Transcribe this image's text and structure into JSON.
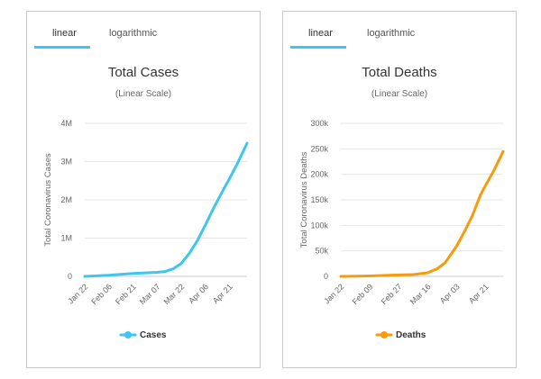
{
  "charts": [
    {
      "id": "cases",
      "tabs": [
        {
          "label": "linear",
          "active": true
        },
        {
          "label": "logarithmic",
          "active": false
        }
      ],
      "color": "#3ec5f0",
      "title": "Total Cases",
      "subtitle": "(Linear Scale)",
      "ylabel": "Total Coronavirus Cases",
      "legend": "Cases",
      "yticks": [
        "0",
        "1M",
        "2M",
        "3M",
        "4M"
      ],
      "ytick_values": [
        0,
        1000000,
        2000000,
        3000000,
        4000000
      ],
      "xticks": [
        "Jan 22",
        "Feb 06",
        "Feb 21",
        "Mar 07",
        "Mar 22",
        "Apr 06",
        "Apr 21"
      ],
      "xtick_days": [
        0,
        15,
        30,
        45,
        60,
        75,
        90
      ]
    },
    {
      "id": "deaths",
      "tabs": [
        {
          "label": "linear",
          "active": true
        },
        {
          "label": "logarithmic",
          "active": false
        }
      ],
      "color": "#f79b0c",
      "title": "Total Deaths",
      "subtitle": "(Linear Scale)",
      "ylabel": "Total Coronavirus Deaths",
      "legend": "Deaths",
      "yticks": [
        "0",
        "50k",
        "100k",
        "150k",
        "200k",
        "250k",
        "300k"
      ],
      "ytick_values": [
        0,
        50000,
        100000,
        150000,
        200000,
        250000,
        300000
      ],
      "xticks": [
        "Jan 22",
        "Feb 09",
        "Feb 27",
        "Mar 16",
        "Apr 03",
        "Apr 21"
      ],
      "xtick_days": [
        0,
        18,
        36,
        54,
        72,
        90
      ]
    }
  ],
  "chart_data": [
    {
      "type": "line",
      "title": "Total Cases",
      "subtitle": "(Linear Scale)",
      "ylabel": "Total Coronavirus Cases",
      "xlabel": "",
      "ylim": [
        0,
        4000000
      ],
      "xlim": [
        "Jan 22",
        "May 02"
      ],
      "legend": "bottom",
      "grid": true,
      "series": [
        {
          "name": "Cases",
          "color": "#3ec5f0",
          "x": [
            "Jan 22",
            "Feb 06",
            "Feb 21",
            "Mar 07",
            "Mar 12",
            "Mar 17",
            "Mar 22",
            "Mar 27",
            "Apr 01",
            "Apr 06",
            "Apr 11",
            "Apr 16",
            "Apr 21",
            "Apr 26",
            "May 02"
          ],
          "y": [
            555,
            30000,
            77000,
            105000,
            128000,
            198000,
            337000,
            593000,
            932000,
            1340000,
            1770000,
            2170000,
            2550000,
            2950000,
            3480000
          ]
        }
      ]
    },
    {
      "type": "line",
      "title": "Total Deaths",
      "subtitle": "(Linear Scale)",
      "ylabel": "Total Coronavirus Deaths",
      "xlabel": "",
      "ylim": [
        0,
        300000
      ],
      "xlim": [
        "Jan 22",
        "May 02"
      ],
      "legend": "bottom",
      "grid": true,
      "series": [
        {
          "name": "Deaths",
          "color": "#f79b0c",
          "x": [
            "Jan 22",
            "Feb 09",
            "Feb 27",
            "Mar 07",
            "Mar 16",
            "Mar 22",
            "Mar 27",
            "Apr 03",
            "Apr 08",
            "Apr 13",
            "Apr 18",
            "Apr 21",
            "Apr 26",
            "May 02"
          ],
          "y": [
            17,
            900,
            2800,
            3500,
            7100,
            15000,
            27000,
            59000,
            88000,
            120000,
            160000,
            178000,
            206000,
            245000
          ]
        }
      ]
    }
  ]
}
